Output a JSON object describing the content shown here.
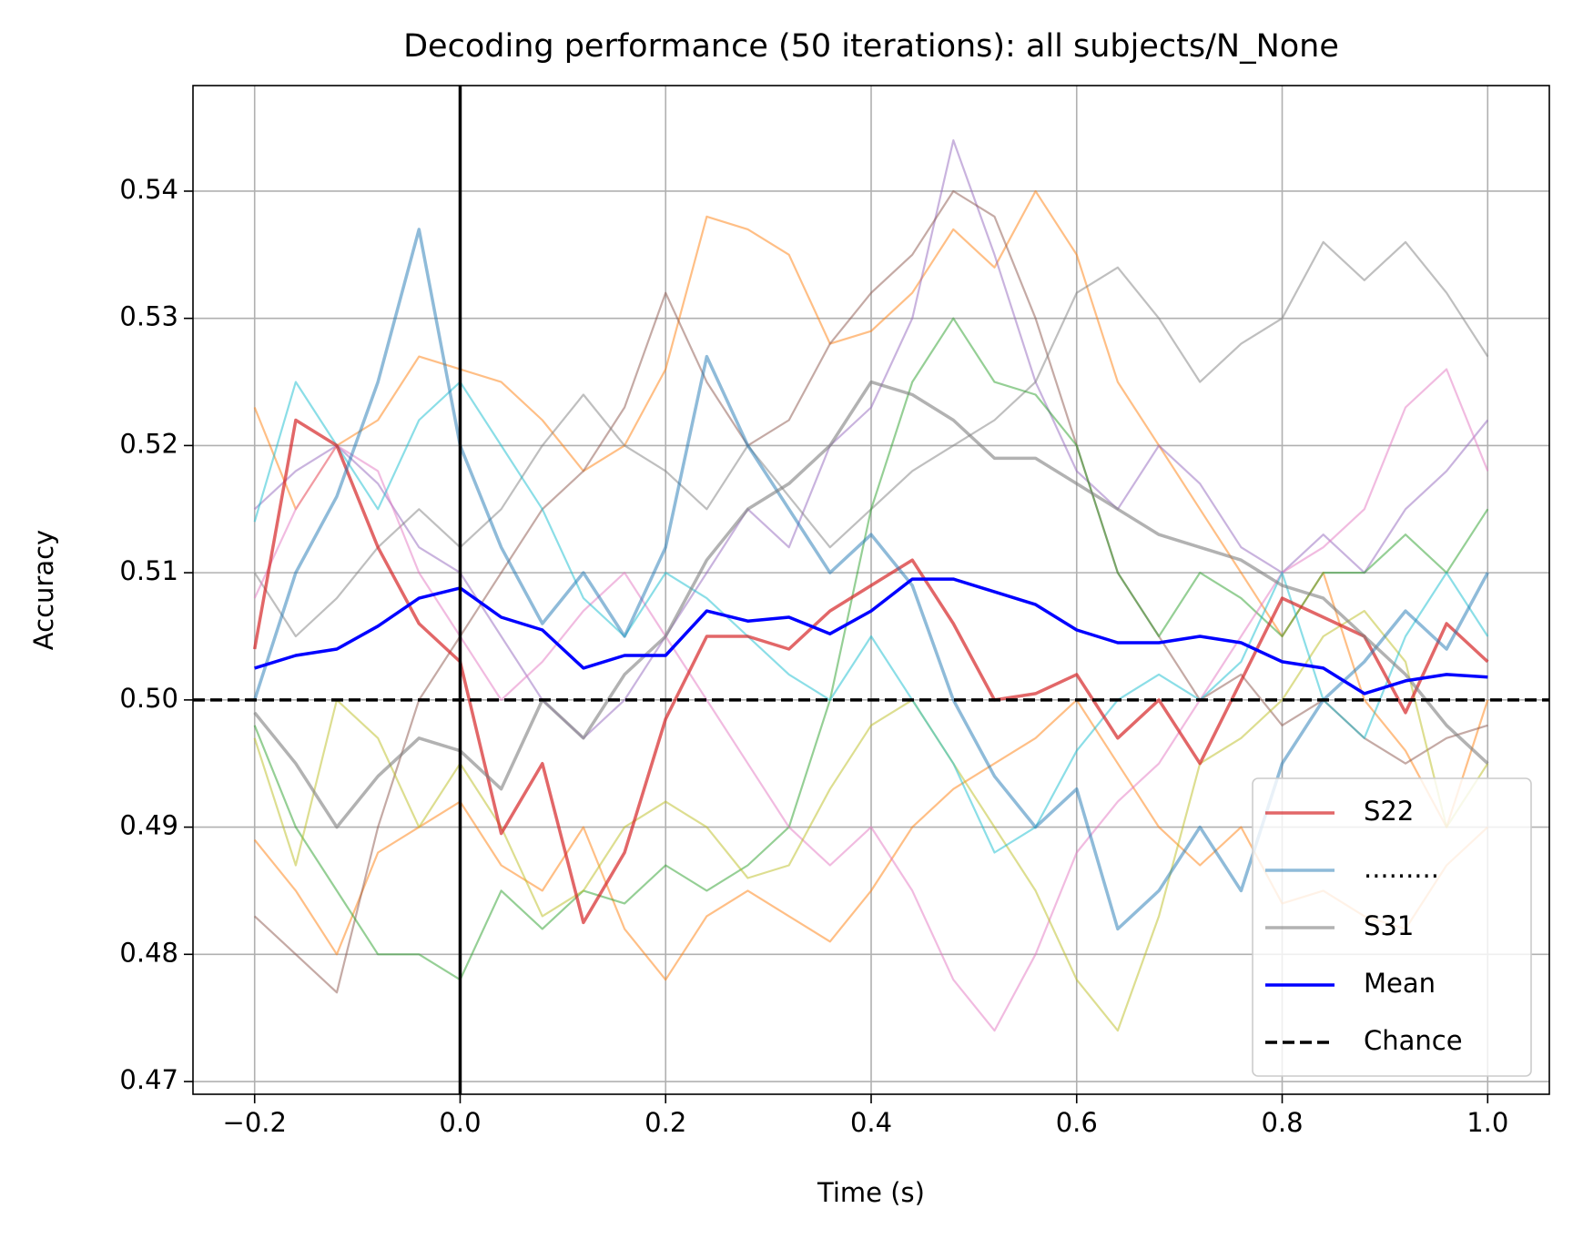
{
  "chart_data": {
    "type": "line",
    "title": "Decoding performance (50 iterations): all subjects/N_None",
    "xlabel": "Time (s)",
    "ylabel": "Accuracy",
    "x": [
      -0.2,
      -0.16,
      -0.12,
      -0.08,
      -0.04,
      0,
      0.04,
      0.08,
      0.12,
      0.16,
      0.2,
      0.24,
      0.28,
      0.32,
      0.36,
      0.4,
      0.44,
      0.48,
      0.52,
      0.56,
      0.6,
      0.64,
      0.68,
      0.72,
      0.76,
      0.8,
      0.84,
      0.88,
      0.92,
      0.96,
      1.0
    ],
    "series": [
      {
        "color": "#ff7f0e",
        "alpha": 0.5,
        "values": [
          0.523,
          0.515,
          0.52,
          0.522,
          0.527,
          0.526,
          0.525,
          0.522,
          0.518,
          0.52,
          0.526,
          0.538,
          0.537,
          0.535,
          0.528,
          0.529,
          0.532,
          0.537,
          0.534,
          0.54,
          0.535,
          0.525,
          0.52,
          0.515,
          0.51,
          0.505,
          0.51,
          0.5,
          0.496,
          0.49,
          0.5
        ]
      },
      {
        "color": "#ff7f0e",
        "alpha": 0.5,
        "values": [
          0.489,
          0.485,
          0.48,
          0.488,
          0.49,
          0.492,
          0.487,
          0.485,
          0.49,
          0.482,
          0.478,
          0.483,
          0.485,
          0.483,
          0.481,
          0.485,
          0.49,
          0.493,
          0.495,
          0.497,
          0.5,
          0.495,
          0.49,
          0.487,
          0.49,
          0.484,
          0.485,
          0.483,
          0.482,
          0.487,
          0.49
        ]
      },
      {
        "color": "#9467bd",
        "alpha": 0.5,
        "values": [
          0.515,
          0.518,
          0.52,
          0.517,
          0.512,
          0.51,
          0.505,
          0.5,
          0.497,
          0.5,
          0.505,
          0.51,
          0.515,
          0.512,
          0.52,
          0.523,
          0.53,
          0.544,
          0.535,
          0.525,
          0.518,
          0.515,
          0.52,
          0.517,
          0.512,
          0.51,
          0.513,
          0.51,
          0.515,
          0.518,
          0.522
        ]
      },
      {
        "color": "#8c564b",
        "alpha": 0.5,
        "values": [
          0.483,
          0.48,
          0.477,
          0.49,
          0.5,
          0.505,
          0.51,
          0.515,
          0.518,
          0.523,
          0.532,
          0.525,
          0.52,
          0.522,
          0.528,
          0.532,
          0.535,
          0.54,
          0.538,
          0.53,
          0.52,
          0.51,
          0.505,
          0.5,
          0.502,
          0.498,
          0.5,
          0.497,
          0.495,
          0.497,
          0.498
        ]
      },
      {
        "color": "#7f7f7f",
        "alpha": 0.5,
        "values": [
          0.51,
          0.505,
          0.508,
          0.512,
          0.515,
          0.512,
          0.515,
          0.52,
          0.524,
          0.52,
          0.518,
          0.515,
          0.52,
          0.516,
          0.512,
          0.515,
          0.518,
          0.52,
          0.522,
          0.525,
          0.532,
          0.534,
          0.53,
          0.525,
          0.528,
          0.53,
          0.536,
          0.533,
          0.536,
          0.532,
          0.527
        ]
      },
      {
        "color": "#2ca02c",
        "alpha": 0.5,
        "values": [
          0.498,
          0.49,
          0.485,
          0.48,
          0.48,
          0.478,
          0.485,
          0.482,
          0.485,
          0.484,
          0.487,
          0.485,
          0.487,
          0.49,
          0.5,
          0.515,
          0.525,
          0.53,
          0.525,
          0.524,
          0.52,
          0.51,
          0.505,
          0.51,
          0.508,
          0.505,
          0.51,
          0.51,
          0.513,
          0.51,
          0.515
        ]
      },
      {
        "color": "#e377c2",
        "alpha": 0.5,
        "values": [
          0.508,
          0.515,
          0.52,
          0.518,
          0.51,
          0.505,
          0.5,
          0.503,
          0.507,
          0.51,
          0.505,
          0.5,
          0.495,
          0.49,
          0.487,
          0.49,
          0.485,
          0.478,
          0.474,
          0.48,
          0.488,
          0.492,
          0.495,
          0.5,
          0.505,
          0.51,
          0.512,
          0.515,
          0.523,
          0.526,
          0.518
        ]
      },
      {
        "color": "#bcbd22",
        "alpha": 0.5,
        "values": [
          0.497,
          0.487,
          0.5,
          0.497,
          0.49,
          0.495,
          0.49,
          0.483,
          0.485,
          0.49,
          0.492,
          0.49,
          0.486,
          0.487,
          0.493,
          0.498,
          0.5,
          0.495,
          0.49,
          0.485,
          0.478,
          0.474,
          0.483,
          0.495,
          0.497,
          0.5,
          0.505,
          0.507,
          0.503,
          0.49,
          0.495
        ]
      },
      {
        "color": "#17becf",
        "alpha": 0.5,
        "values": [
          0.514,
          0.525,
          0.52,
          0.515,
          0.522,
          0.525,
          0.52,
          0.515,
          0.508,
          0.505,
          0.51,
          0.508,
          0.505,
          0.502,
          0.5,
          0.505,
          0.5,
          0.495,
          0.488,
          0.49,
          0.496,
          0.5,
          0.502,
          0.5,
          0.503,
          0.51,
          0.5,
          0.497,
          0.505,
          0.51,
          0.505
        ]
      },
      {
        "name": "S22",
        "color": "#d62728",
        "alpha": 0.7,
        "values": [
          0.504,
          0.522,
          0.52,
          0.512,
          0.506,
          0.503,
          0.4895,
          0.495,
          0.4825,
          0.488,
          0.4985,
          0.505,
          0.505,
          0.504,
          0.507,
          0.509,
          0.511,
          0.506,
          0.5,
          0.5005,
          0.502,
          0.497,
          0.5,
          0.495,
          0.5015,
          0.508,
          0.5065,
          0.505,
          0.499,
          0.506,
          0.503
        ]
      },
      {
        "name": ".........",
        "color": "#1f77b4",
        "alpha": 0.5,
        "values": [
          0.5,
          0.51,
          0.516,
          0.525,
          0.537,
          0.52,
          0.512,
          0.506,
          0.51,
          0.505,
          0.512,
          0.527,
          0.52,
          0.515,
          0.51,
          0.513,
          0.509,
          0.5,
          0.494,
          0.49,
          0.493,
          0.482,
          0.485,
          0.49,
          0.485,
          0.495,
          0.5,
          0.503,
          0.507,
          0.504,
          0.51
        ]
      },
      {
        "name": "S31",
        "color": "#7f7f7f",
        "alpha": 0.6,
        "values": [
          0.499,
          0.495,
          0.49,
          0.494,
          0.497,
          0.496,
          0.493,
          0.5,
          0.497,
          0.502,
          0.505,
          0.511,
          0.515,
          0.517,
          0.52,
          0.525,
          0.524,
          0.522,
          0.519,
          0.519,
          0.517,
          0.515,
          0.513,
          0.512,
          0.511,
          0.509,
          0.508,
          0.505,
          0.502,
          0.498,
          0.495
        ]
      },
      {
        "name": "Mean",
        "color": "#0000ff",
        "alpha": 1,
        "values": [
          0.5025,
          0.5035,
          0.504,
          0.5058,
          0.508,
          0.5088,
          0.5065,
          0.5055,
          0.5025,
          0.5035,
          0.5035,
          0.507,
          0.5062,
          0.5065,
          0.5052,
          0.507,
          0.5095,
          0.5095,
          0.5085,
          0.5075,
          0.5055,
          0.5045,
          0.5045,
          0.505,
          0.5045,
          0.503,
          0.5025,
          0.5005,
          0.5015,
          0.502,
          0.5018
        ]
      }
    ],
    "hlines": [
      {
        "name": "Chance",
        "value": 0.5,
        "color": "#000000",
        "dashed": true
      }
    ],
    "vlines": [
      {
        "value": 0,
        "color": "#000000"
      }
    ],
    "xlim": [
      -0.26,
      1.06
    ],
    "xticks": [
      {
        "value": -0.2,
        "label": "−0.2"
      },
      {
        "value": 0,
        "label": "0.0"
      },
      0.2,
      0.4,
      0.6,
      0.8,
      {
        "value": 1,
        "label": "1.0"
      }
    ],
    "ylim": [
      0.469,
      0.5483
    ],
    "yticks": [
      0.47,
      0.48,
      0.49,
      {
        "value": 0.5,
        "label": "0.50"
      },
      0.51,
      0.52,
      0.53,
      0.54
    ],
    "grid": true,
    "legend": "lower right"
  }
}
